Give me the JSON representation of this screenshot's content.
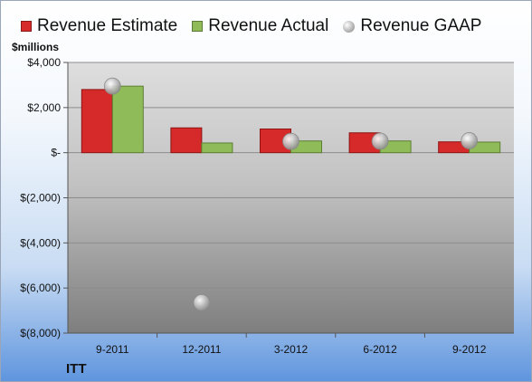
{
  "chart_data": {
    "type": "bar",
    "ylabel": "$millions",
    "footer": "ITT",
    "categories": [
      "9-2011",
      "12-2011",
      "3-2012",
      "6-2012",
      "9-2012"
    ],
    "series": [
      {
        "name": "Revenue Estimate",
        "kind": "bar",
        "color": "#d62a2a",
        "values": [
          2800,
          1100,
          1050,
          880,
          480
        ]
      },
      {
        "name": "Revenue Actual",
        "kind": "bar",
        "color": "#8fbc58",
        "values": [
          2950,
          430,
          520,
          520,
          470
        ]
      },
      {
        "name": "Revenue GAAP",
        "kind": "marker",
        "color": "#b8b8b8",
        "values": [
          2950,
          -6650,
          500,
          510,
          530
        ]
      }
    ],
    "ylim": [
      -8000,
      4000
    ],
    "yticks": [
      4000,
      2000,
      0,
      -2000,
      -4000,
      -6000,
      -8000
    ],
    "yticklabels": [
      "$4,000",
      "$2,000",
      "$-",
      "$(2,000)",
      "$(4,000)",
      "$(6,000)",
      "$(8,000)"
    ],
    "grid": true,
    "legend_position": "top"
  }
}
